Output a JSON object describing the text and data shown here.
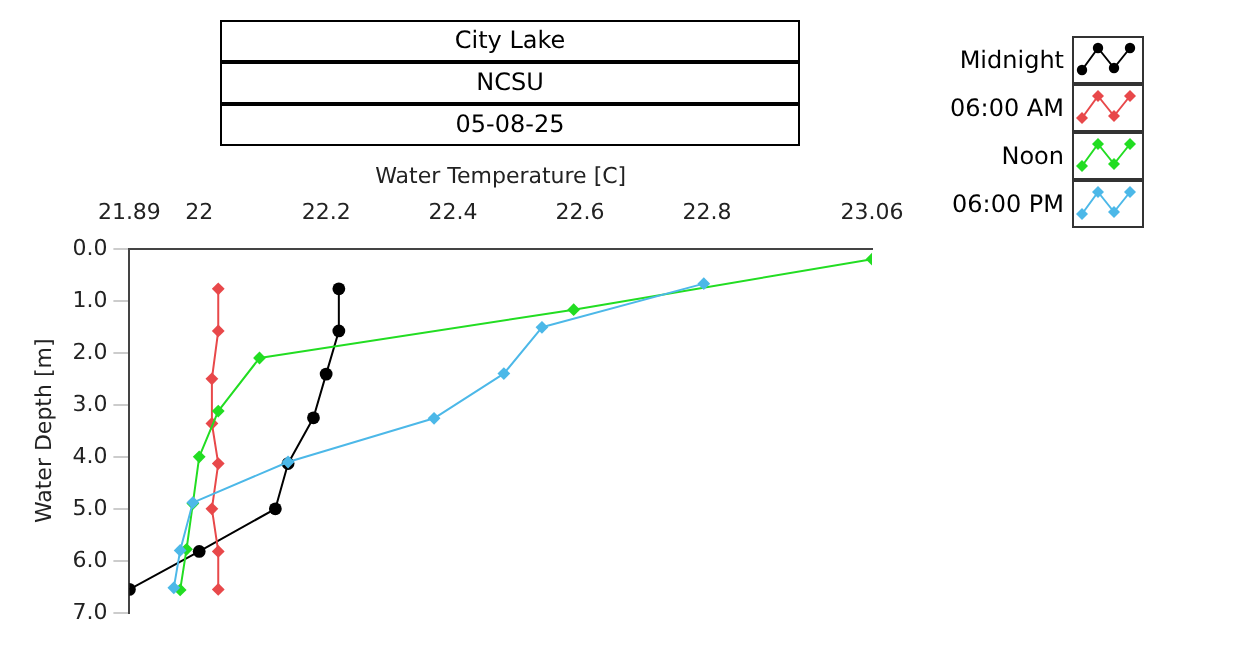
{
  "chart_data": {
    "type": "line",
    "title": "City Lake",
    "subtitle": "NCSU",
    "annotations": [
      "05-08-25"
    ],
    "xlabel": "Water Temperature [C]",
    "ylabel": "Water Depth [m]",
    "series": [
      {
        "name": "Midnight",
        "color": "#000000",
        "marker": "circle",
        "x": [
          22.22,
          22.22,
          22.2,
          22.18,
          22.14,
          22.12,
          22.0,
          21.89
        ],
        "values": [
          0.77,
          1.58,
          2.41,
          3.25,
          4.13,
          5.0,
          5.82,
          6.55
        ]
      },
      {
        "name": "06:00 AM",
        "color": "#e8484a",
        "marker": "diamond",
        "x": [
          22.03,
          22.03,
          22.02,
          22.02,
          22.03,
          22.02,
          22.03,
          22.03
        ],
        "values": [
          0.77,
          1.58,
          2.5,
          3.36,
          4.13,
          5.0,
          5.82,
          6.55
        ]
      },
      {
        "name": "Noon",
        "color": "#22dd22",
        "marker": "diamond",
        "x": [
          23.06,
          22.59,
          22.095,
          22.03,
          22.0,
          21.99,
          21.98,
          21.97
        ],
        "values": [
          0.2,
          1.17,
          2.1,
          3.12,
          4.0,
          4.9,
          5.78,
          6.56
        ]
      },
      {
        "name": "06:00 PM",
        "color": "#4cb8e8",
        "marker": "diamond",
        "x": [
          22.795,
          22.54,
          22.48,
          22.37,
          22.14,
          21.99,
          21.97,
          21.96
        ],
        "values": [
          0.67,
          1.51,
          2.4,
          3.26,
          4.1,
          4.88,
          5.8,
          6.52
        ]
      }
    ],
    "xlim": [
      21.89,
      23.06
    ],
    "xticks": [
      21.89,
      22,
      22.2,
      22.4,
      22.6,
      22.8,
      23.06
    ],
    "ylim": [
      7,
      0
    ],
    "yticks": [
      {
        "value": 0,
        "label": "0.0"
      },
      {
        "value": 1,
        "label": "1.0"
      },
      {
        "value": 2,
        "label": "2.0"
      },
      {
        "value": 3,
        "label": "3.0"
      },
      {
        "value": 4,
        "label": "4.0"
      },
      {
        "value": 5,
        "label": "5.0"
      },
      {
        "value": 6,
        "label": "6.0"
      },
      {
        "value": 7,
        "label": "7.0"
      }
    ],
    "grid": false,
    "legend": "top right"
  }
}
